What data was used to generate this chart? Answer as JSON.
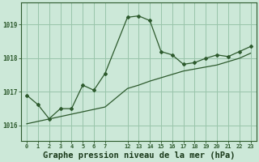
{
  "background_color": "#cce8d8",
  "grid_color": "#99c4aa",
  "line_color": "#2d5a2d",
  "title": "Graphe pression niveau de la mer (hPa)",
  "title_fontsize": 7.5,
  "title_color": "#1a3a1a",
  "ylabel_ticks": [
    1016,
    1017,
    1018,
    1019
  ],
  "xtick_labels": [
    "0",
    "1",
    "2",
    "3",
    "4",
    "5",
    "6",
    "7",
    "12",
    "13",
    "14",
    "15",
    "16",
    "17",
    "18",
    "19",
    "20",
    "21",
    "22",
    "23"
  ],
  "xtick_positions": [
    0,
    1,
    2,
    3,
    4,
    5,
    6,
    7,
    9,
    10,
    11,
    12,
    13,
    14,
    15,
    16,
    17,
    18,
    19,
    20
  ],
  "xlim": [
    -0.5,
    20.5
  ],
  "ylim": [
    1015.55,
    1019.65
  ],
  "series1_pos": [
    0,
    1,
    2,
    3,
    4,
    5,
    6,
    7,
    9,
    10,
    11,
    12,
    13,
    14,
    15,
    16,
    17,
    18,
    19,
    20
  ],
  "series1_y": [
    1016.9,
    1016.62,
    1016.2,
    1016.5,
    1016.5,
    1017.2,
    1017.05,
    1017.55,
    1019.22,
    1019.26,
    1019.12,
    1018.2,
    1018.1,
    1017.82,
    1017.87,
    1018.0,
    1018.1,
    1018.05,
    1018.2,
    1018.35
  ],
  "series2_pos": [
    0,
    7,
    9,
    10,
    11,
    12,
    13,
    14,
    15,
    16,
    17,
    18,
    19,
    20
  ],
  "series2_y": [
    1016.05,
    1016.55,
    1017.1,
    1017.2,
    1017.32,
    1017.42,
    1017.52,
    1017.62,
    1017.68,
    1017.74,
    1017.8,
    1017.9,
    1018.0,
    1018.15
  ]
}
